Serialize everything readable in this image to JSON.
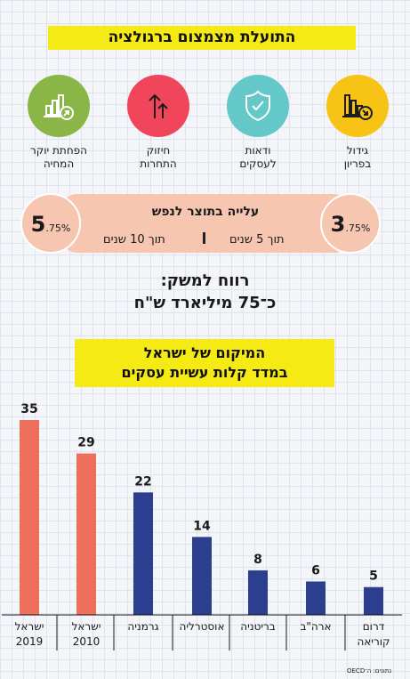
{
  "header": {
    "title": "התועלת מצמצום ברגולציה"
  },
  "benefits": [
    {
      "icon": "chart-down-icon",
      "label_lines": [
        "גידול",
        "בפריון"
      ]
    },
    {
      "icon": "shield-check-icon",
      "label_lines": [
        "ודאות",
        "לעסקים"
      ]
    },
    {
      "icon": "arrows-up-icon",
      "label_lines": [
        "חיזוק",
        "התחרות"
      ]
    },
    {
      "icon": "chart-up-icon",
      "label_lines": [
        "הפחתת יוקר",
        "המחיה"
      ]
    }
  ],
  "growth": {
    "title": "עלייה בתוצר לנפש",
    "five_years_label": "תוך 5 שנים",
    "ten_years_label": "תוך 10 שנים",
    "five_years_value_main": "3",
    "five_years_value_dec": ".75%",
    "ten_years_value_main": "5",
    "ten_years_value_dec": ".75%"
  },
  "profit": {
    "line1": "רווח למשק:",
    "line2": "כ־75 מיליארד ש\"ח"
  },
  "chart_title": {
    "line1": "המיקום של ישראל",
    "line2": "במדד קלות עשיית עסקים"
  },
  "colors": {
    "yellow": "#f5ea14",
    "israel": "#ef6f5e",
    "other": "#2b3f8e"
  },
  "chart_data": {
    "type": "bar",
    "title": "המיקום של ישראל במדד קלות עשיית עסקים",
    "categories": [
      "ישראל 2019",
      "ישראל 2010",
      "גרמניה",
      "אוסטרליה",
      "בריטניה",
      "ארה\"ב",
      "דרום קוריאה"
    ],
    "category_lines": [
      [
        "ישראל",
        "2019"
      ],
      [
        "ישראל",
        "2010"
      ],
      [
        "גרמניה"
      ],
      [
        "אוסטרליה"
      ],
      [
        "בריטניה"
      ],
      [
        "ארה\"ב"
      ],
      [
        "דרום",
        "קוריאה"
      ]
    ],
    "values": [
      35,
      29,
      22,
      14,
      8,
      6,
      5
    ],
    "highlight": [
      true,
      true,
      false,
      false,
      false,
      false,
      false
    ],
    "ylim": [
      0,
      35
    ]
  },
  "source": "נתונים: ה־OECD"
}
